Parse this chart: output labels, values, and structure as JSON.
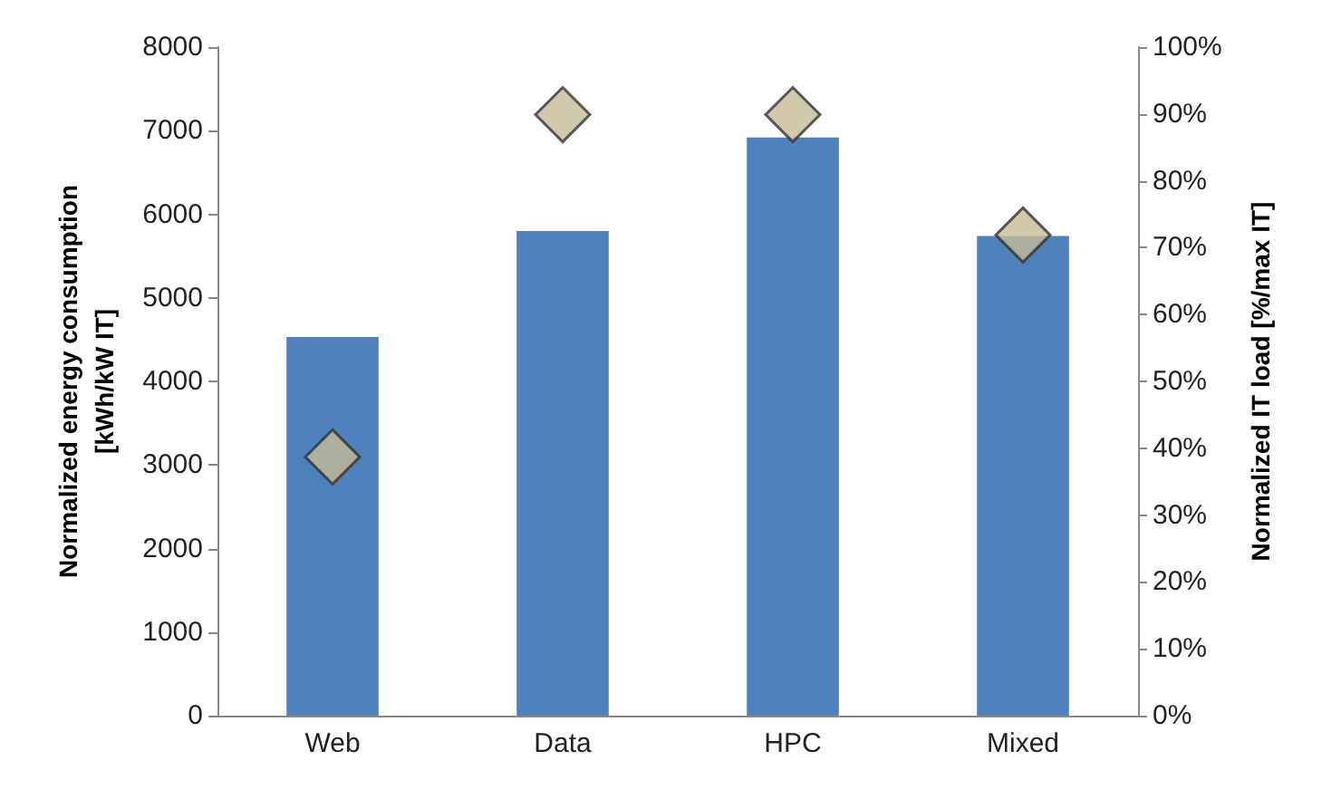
{
  "chart_data": {
    "type": "bar",
    "ylabel": "Normalized energy consumption\n[kWh/kW IT]",
    "y2label": "Normalized IT load [%/max IT]",
    "categories": [
      "Web",
      "Data",
      "HPC",
      "Mixed"
    ],
    "series": [
      {
        "color": "#4f81bd",
        "values": [
          4530,
          5800,
          6920,
          5740
        ]
      },
      {
        "type": "scatter",
        "axis": "y2",
        "color": "#c4bc96",
        "values": [
          38.7,
          89.9,
          89.9,
          71.9
        ]
      }
    ],
    "marker": "diamond",
    "grid": false,
    "ylim": [
      0,
      8000
    ],
    "yticks": [
      0,
      1000,
      2000,
      3000,
      4000,
      5000,
      6000,
      7000,
      8000
    ],
    "y2lim": [
      0,
      100
    ],
    "y2ticks": [
      {
        "value": 0,
        "label": "0%"
      },
      {
        "value": 10,
        "label": "10%"
      },
      {
        "value": 20,
        "label": "20%"
      },
      {
        "value": 30,
        "label": "30%"
      },
      {
        "value": 40,
        "label": "40%"
      },
      {
        "value": 50,
        "label": "50%"
      },
      {
        "value": 60,
        "label": "60%"
      },
      {
        "value": 70,
        "label": "70%"
      },
      {
        "value": 80,
        "label": "80%"
      },
      {
        "value": 90,
        "label": "90%"
      },
      {
        "value": 100,
        "label": "100%"
      }
    ]
  }
}
